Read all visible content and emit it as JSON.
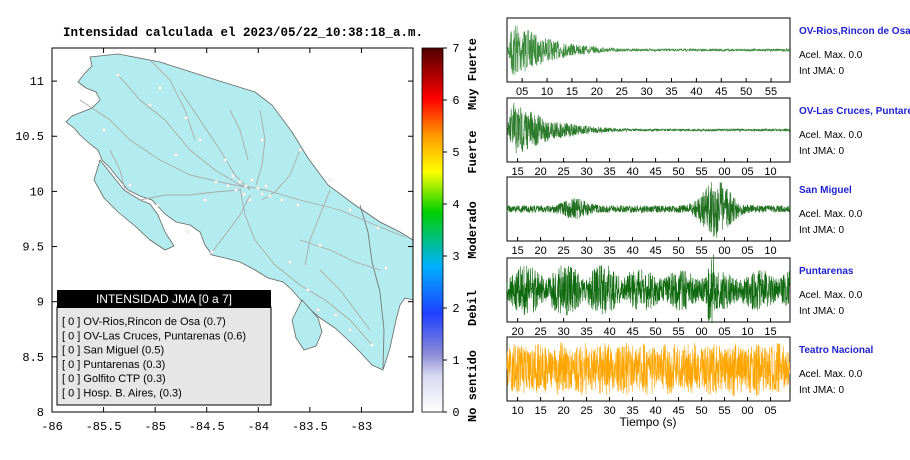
{
  "chart_data": [
    {
      "type": "scatter",
      "title": "Intensidad calculada el 2023/05/22_10:38:18_a.m.",
      "xlim": [
        -86,
        -82.5
      ],
      "ylim": [
        8,
        11.3
      ],
      "x_ticks": [
        -86,
        -85.5,
        -85,
        -84.5,
        -84,
        -83.5,
        -83
      ],
      "x_tick_labels": [
        "-86",
        "-85.5",
        "-85",
        "-84.5",
        "-84",
        "-83.5",
        "-83"
      ],
      "y_ticks": [
        8,
        8.5,
        9,
        9.5,
        10,
        10.5,
        11
      ],
      "y_tick_labels": [
        "8",
        "8.5",
        "9",
        "9.5",
        "10",
        "10.5",
        "11"
      ],
      "land_color": "#b3ecee",
      "legend": {
        "title": "INTENSIDAD JMA [0 a 7]",
        "placement": "bottom-left",
        "entries": [
          "[ 0 ]  OV-Rios,Rincon de Osa (0.7)",
          "[ 0 ]  OV-Las Cruces, Puntarenas (0.6)",
          "[ 0 ]  San Miguel (0.5)",
          "[ 0 ]  Puntarenas (0.3)",
          "[ 0 ]  Golfito CTP (0.3)",
          "[ 0 ]  Hosp. B. Aires, (0.3)"
        ]
      },
      "colorbar": {
        "min": 0,
        "max": 7,
        "ticks": [
          "0",
          "1",
          "2",
          "3",
          "4",
          "5",
          "6",
          "7"
        ],
        "labels": [
          {
            "text": "No sentido",
            "value": 0.5
          },
          {
            "text": "Debil",
            "value": 2
          },
          {
            "text": "Moderado",
            "value": 3.5
          },
          {
            "text": "Fuerte",
            "value": 5
          },
          {
            "text": "Muy Fuerte",
            "value": 6.5
          }
        ],
        "colors": [
          "#ffffff",
          "#8a8ad6",
          "#2040ff",
          "#00b0ff",
          "#00d000",
          "#ffff00",
          "#ff9900",
          "#ff0000",
          "#600000"
        ]
      }
    },
    {
      "type": "line",
      "xlabel": "Tiempo (s)",
      "panels": [
        {
          "station": "OV-Rios,Rincon de Osa",
          "acel": "Acel. Max. 0.0",
          "int": "Int JMA: 0",
          "color": "#3a8a3a",
          "tick_labels": [
            "05",
            "10",
            "15",
            "20",
            "25",
            "30",
            "35",
            "40",
            "45",
            "50",
            "55"
          ],
          "envelope": "early-decay"
        },
        {
          "station": "OV-Las Cruces, Puntarenas",
          "acel": "Acel. Max. 0.0",
          "int": "Int JMA: 0",
          "color": "#2b7a2b",
          "tick_labels": [
            "15",
            "20",
            "25",
            "30",
            "35",
            "40",
            "45",
            "50",
            "55",
            "00",
            "05",
            "10"
          ],
          "envelope": "early-decay"
        },
        {
          "station": "San Miguel",
          "acel": "Acel. Max. 0.0",
          "int": "Int JMA: 0",
          "color": "#1f6f1f",
          "tick_labels": [
            "15",
            "20",
            "25",
            "30",
            "35",
            "40",
            "45",
            "50",
            "55",
            "00",
            "05",
            "10"
          ],
          "envelope": "mid-burst"
        },
        {
          "station": "Puntarenas",
          "acel": "Acel. Max. 0.0",
          "int": "Int JMA: 0",
          "color": "#0f6a0f",
          "tick_labels": [
            "20",
            "25",
            "30",
            "35",
            "40",
            "45",
            "50",
            "55",
            "00",
            "05",
            "10",
            "15"
          ],
          "envelope": "noisy"
        },
        {
          "station": "Teatro Nacional",
          "acel": "Acel. Max. 0.0",
          "int": "Int JMA: 0",
          "color": "#ffa500",
          "tick_labels": [
            "10",
            "15",
            "20",
            "25",
            "30",
            "35",
            "40",
            "45",
            "50",
            "55",
            "00",
            "05"
          ],
          "envelope": "noise"
        }
      ]
    }
  ],
  "station_label_color": "#1f1fd0"
}
